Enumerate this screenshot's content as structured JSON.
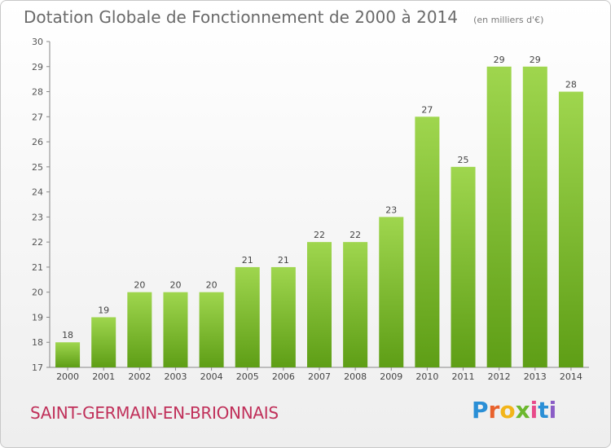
{
  "chart_data": {
    "type": "bar",
    "title": "Dotation Globale de Fonctionnement de 2000 à 2014",
    "unit_note": "(en milliers d'€)",
    "categories": [
      "2000",
      "2001",
      "2002",
      "2003",
      "2004",
      "2005",
      "2006",
      "2007",
      "2008",
      "2009",
      "2010",
      "2011",
      "2012",
      "2013",
      "2014"
    ],
    "values": [
      18,
      19,
      20,
      20,
      20,
      21,
      21,
      22,
      22,
      23,
      27,
      25,
      29,
      29,
      28
    ],
    "ylim": [
      17,
      30
    ],
    "yticks": [
      17,
      18,
      19,
      20,
      21,
      22,
      23,
      24,
      25,
      26,
      27,
      28,
      29,
      30
    ],
    "bar_color": "#7cbd2c",
    "grid": false
  },
  "footer": {
    "commune": "SAINT-GERMAIN-EN-BRIONNAIS",
    "logo": "Proxiti"
  },
  "colors": {
    "title": "#6a6a6a",
    "commune": "#c0305a"
  }
}
